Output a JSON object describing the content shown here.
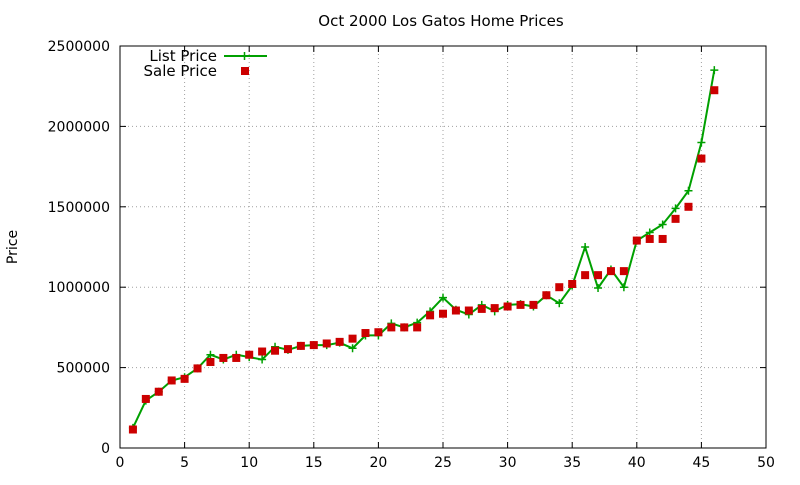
{
  "chart_data": {
    "type": "line",
    "title": "Oct 2000 Los Gatos Home Prices",
    "xlabel": "",
    "ylabel": "Price",
    "xlim": [
      0,
      50
    ],
    "ylim": [
      0,
      2500000
    ],
    "xticks": [
      0,
      5,
      10,
      15,
      20,
      25,
      30,
      35,
      40,
      45,
      50
    ],
    "yticks": [
      0,
      500000,
      1000000,
      1500000,
      2000000,
      2500000
    ],
    "grid": true,
    "legend_position": "top-left",
    "series": [
      {
        "name": "List Price",
        "style": "line-with-plus-markers",
        "color": "#00a000",
        "x": [
          1,
          2,
          3,
          4,
          5,
          6,
          7,
          8,
          9,
          10,
          11,
          12,
          13,
          14,
          15,
          16,
          17,
          18,
          19,
          20,
          21,
          22,
          23,
          24,
          25,
          26,
          27,
          28,
          29,
          30,
          31,
          32,
          33,
          34,
          35,
          36,
          37,
          38,
          39,
          40,
          41,
          42,
          43,
          44,
          45,
          46
        ],
        "y": [
          125000,
          295000,
          350000,
          420000,
          440000,
          495000,
          580000,
          550000,
          580000,
          565000,
          550000,
          630000,
          610000,
          635000,
          640000,
          640000,
          655000,
          620000,
          700000,
          700000,
          775000,
          750000,
          780000,
          850000,
          935000,
          860000,
          830000,
          890000,
          850000,
          890000,
          895000,
          880000,
          950000,
          900000,
          1010000,
          1250000,
          995000,
          1110000,
          1000000,
          1290000,
          1340000,
          1390000,
          1490000,
          1600000,
          1900000,
          2350000
        ]
      },
      {
        "name": "Sale Price",
        "style": "square-markers",
        "color": "#cc0000",
        "x": [
          1,
          2,
          3,
          4,
          5,
          6,
          7,
          8,
          9,
          10,
          11,
          12,
          13,
          14,
          15,
          16,
          17,
          18,
          19,
          20,
          21,
          22,
          23,
          24,
          25,
          26,
          27,
          28,
          29,
          30,
          31,
          32,
          33,
          34,
          35,
          36,
          37,
          38,
          39,
          40,
          41,
          42,
          43,
          44,
          45,
          46
        ],
        "y": [
          115000,
          305000,
          350000,
          420000,
          430000,
          495000,
          535000,
          560000,
          560000,
          580000,
          600000,
          605000,
          615000,
          635000,
          640000,
          650000,
          660000,
          680000,
          715000,
          720000,
          750000,
          750000,
          750000,
          825000,
          835000,
          855000,
          855000,
          865000,
          870000,
          880000,
          890000,
          890000,
          950000,
          1000000,
          1020000,
          1075000,
          1075000,
          1100000,
          1100000,
          1290000,
          1300000,
          1300000,
          1425000,
          1500000,
          1800000,
          2225000
        ]
      }
    ]
  }
}
